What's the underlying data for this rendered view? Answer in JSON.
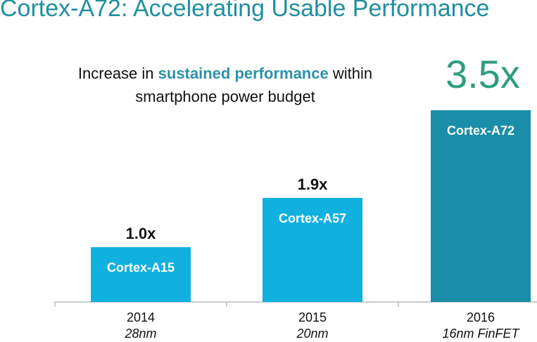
{
  "chart_data": {
    "type": "bar",
    "title": "Cortex-A72: Accelerating Usable Performance",
    "subtitle": {
      "before": "Increase in ",
      "highlight": "sustained performance",
      "after": " within",
      "line2": "smartphone power budget"
    },
    "categories": [
      "2014",
      "2015",
      "2016"
    ],
    "category_sublabels": [
      "28nm",
      "20nm",
      "16nm FinFET"
    ],
    "bar_labels": [
      "Cortex-A15",
      "Cortex-A57",
      "Cortex-A72"
    ],
    "values": [
      1.0,
      1.9,
      3.5
    ],
    "value_labels": [
      "1.0x",
      "1.9x",
      "3.5x"
    ],
    "ylim": [
      0,
      3.5
    ],
    "grid": false,
    "colors": {
      "title": "#1f8fa0",
      "highlight": "#2b92a8",
      "bar": "#10b1df",
      "bar_highlight": "#1a8ea8",
      "big_value": "#2e9d7e",
      "axis": "#999999"
    }
  }
}
